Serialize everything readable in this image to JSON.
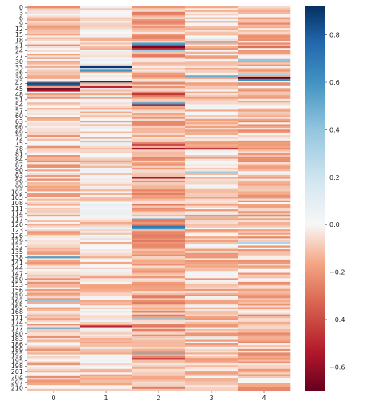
{
  "chart_data": {
    "type": "heatmap",
    "columns": [
      "0",
      "1",
      "2",
      "3",
      "4"
    ],
    "row_count": 212,
    "row_tick_labels": [
      "0",
      "3",
      "6",
      "9",
      "12",
      "15",
      "18",
      "21",
      "24",
      "27",
      "30",
      "33",
      "36",
      "39",
      "42",
      "45",
      "48",
      "51",
      "54",
      "57",
      "60",
      "63",
      "66",
      "69",
      "72",
      "75",
      "78",
      "81",
      "84",
      "87",
      "90",
      "93",
      "96",
      "99",
      "102",
      "105",
      "108",
      "111",
      "114",
      "117",
      "120",
      "123",
      "126",
      "129",
      "132",
      "135",
      "138",
      "141",
      "144",
      "147",
      "150",
      "153",
      "156",
      "159",
      "162",
      "165",
      "168",
      "171",
      "174",
      "177",
      "180",
      "183",
      "186",
      "189",
      "192",
      "195",
      "198",
      "201",
      "204",
      "207",
      "210"
    ],
    "row_tick_step": 3,
    "colorscale": "RdBu_r",
    "vmin": -0.7,
    "vmax": 0.92,
    "colorbar_ticks": [
      "0.8",
      "0.6",
      "0.4",
      "0.2",
      "0.0",
      "−0.2",
      "−0.4",
      "−0.6"
    ],
    "colorbar_tick_values": [
      0.8,
      0.6,
      0.4,
      0.2,
      0.0,
      -0.2,
      -0.4,
      -0.6
    ],
    "baseline_values": [
      -0.1,
      -0.05,
      -0.15,
      -0.08,
      -0.12
    ],
    "highlights": [
      {
        "row": 20,
        "col": 2,
        "value": 0.55
      },
      {
        "row": 21,
        "col": 2,
        "value": 0.7
      },
      {
        "row": 22,
        "col": 2,
        "value": -0.65
      },
      {
        "row": 23,
        "col": 2,
        "value": -0.45
      },
      {
        "row": 24,
        "col": 2,
        "value": 0.35
      },
      {
        "row": 19,
        "col": 3,
        "value": 0.45
      },
      {
        "row": 22,
        "col": 4,
        "value": -0.3
      },
      {
        "row": 29,
        "col": 4,
        "value": 0.4
      },
      {
        "row": 33,
        "col": 1,
        "value": 0.9
      },
      {
        "row": 34,
        "col": 1,
        "value": 0.2
      },
      {
        "row": 35,
        "col": 1,
        "value": 0.6
      },
      {
        "row": 37,
        "col": 4,
        "value": 0.3
      },
      {
        "row": 38,
        "col": 3,
        "value": 0.5
      },
      {
        "row": 39,
        "col": 4,
        "value": -0.7
      },
      {
        "row": 40,
        "col": 4,
        "value": 0.6
      },
      {
        "row": 41,
        "col": 1,
        "value": 0.9
      },
      {
        "row": 42,
        "col": 0,
        "value": 0.85
      },
      {
        "row": 43,
        "col": 0,
        "value": 0.8
      },
      {
        "row": 44,
        "col": 1,
        "value": -0.5
      },
      {
        "row": 45,
        "col": 0,
        "value": -0.7
      },
      {
        "row": 46,
        "col": 0,
        "value": -0.55
      },
      {
        "row": 48,
        "col": 2,
        "value": -0.45
      },
      {
        "row": 53,
        "col": 2,
        "value": 0.55
      },
      {
        "row": 54,
        "col": 2,
        "value": -0.6
      },
      {
        "row": 76,
        "col": 2,
        "value": -0.5
      },
      {
        "row": 78,
        "col": 2,
        "value": -0.55
      },
      {
        "row": 78,
        "col": 3,
        "value": -0.45
      },
      {
        "row": 91,
        "col": 3,
        "value": 0.35
      },
      {
        "row": 94,
        "col": 2,
        "value": -0.55
      },
      {
        "row": 115,
        "col": 3,
        "value": 0.45
      },
      {
        "row": 117,
        "col": 2,
        "value": 0.5
      },
      {
        "row": 121,
        "col": 2,
        "value": 0.7
      },
      {
        "row": 122,
        "col": 2,
        "value": 0.6
      },
      {
        "row": 130,
        "col": 4,
        "value": 0.3
      },
      {
        "row": 138,
        "col": 0,
        "value": 0.55
      },
      {
        "row": 162,
        "col": 0,
        "value": 0.4
      },
      {
        "row": 172,
        "col": 2,
        "value": 0.35
      },
      {
        "row": 177,
        "col": 0,
        "value": 0.5
      },
      {
        "row": 176,
        "col": 1,
        "value": -0.5
      },
      {
        "row": 190,
        "col": 2,
        "value": 0.45
      },
      {
        "row": 192,
        "col": 2,
        "value": 0.35
      },
      {
        "row": 194,
        "col": 2,
        "value": -0.45
      }
    ],
    "title": "",
    "xlabel": "",
    "ylabel": ""
  }
}
